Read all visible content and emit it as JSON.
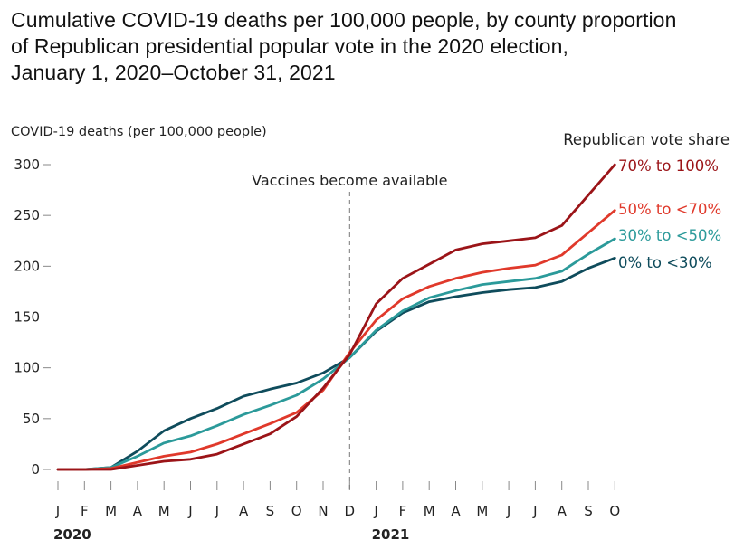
{
  "title": {
    "line1": "Cumulative COVID-19 deaths per 100,000 people, by county proportion",
    "line2": "of Republican presidential popular vote in the 2020 election,",
    "line3": "January 1, 2020–October 31, 2021"
  },
  "chart_data": {
    "type": "line",
    "ylabel": "COVID-19 deaths (per 100,000 people)",
    "ylim": [
      0,
      300
    ],
    "yticks": [
      0,
      50,
      100,
      150,
      200,
      250,
      300
    ],
    "x": [
      "J",
      "F",
      "M",
      "A",
      "M",
      "J",
      "J",
      "A",
      "S",
      "O",
      "N",
      "D",
      "J",
      "F",
      "M",
      "A",
      "M",
      "J",
      "J",
      "A",
      "S",
      "O"
    ],
    "years": [
      {
        "label": "2020",
        "month_index": 0
      },
      {
        "label": "2021",
        "month_index": 12
      }
    ],
    "annotation": {
      "text": "Vaccines become available",
      "month_index": 11
    },
    "legend_title": "Republican vote share",
    "series": [
      {
        "name": "70% to 100%",
        "color": "#9b1418",
        "values": [
          0,
          0,
          0,
          4,
          8,
          10,
          15,
          25,
          35,
          52,
          80,
          113,
          163,
          188,
          202,
          216,
          222,
          225,
          228,
          240,
          270,
          300
        ]
      },
      {
        "name": "50% to <70%",
        "color": "#e0392b",
        "values": [
          0,
          0,
          1,
          7,
          13,
          17,
          25,
          35,
          45,
          56,
          78,
          115,
          147,
          168,
          180,
          188,
          194,
          198,
          201,
          211,
          233,
          255
        ]
      },
      {
        "name": "30% to <50%",
        "color": "#2b9a9a",
        "values": [
          0,
          0,
          2,
          13,
          26,
          33,
          43,
          54,
          63,
          73,
          89,
          110,
          137,
          156,
          169,
          176,
          182,
          185,
          188,
          195,
          212,
          227
        ]
      },
      {
        "name": "0% to <30%",
        "color": "#0f4c5c",
        "values": [
          0,
          0,
          2,
          18,
          38,
          50,
          60,
          72,
          79,
          85,
          95,
          110,
          136,
          154,
          165,
          170,
          174,
          177,
          179,
          185,
          198,
          208
        ]
      }
    ]
  }
}
